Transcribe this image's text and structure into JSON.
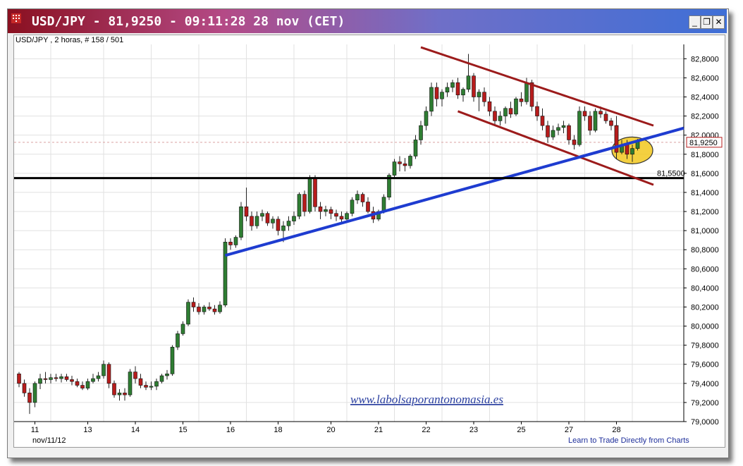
{
  "window": {
    "title": "USD/JPY - 81,9250 - 09:11:28  28 nov (CET)",
    "buttons": {
      "minimize": "_",
      "restore": "❐",
      "close": "✕"
    }
  },
  "subtitle": "USD/JPY , 2 horas, # 158 / 501",
  "footer": {
    "date_label": "nov/11/12",
    "link": "Learn to Trade Directly from Charts"
  },
  "watermark": "www.labolsaporantonomasia.es",
  "colors": {
    "up_candle": "#2e7d32",
    "down_candle": "#b71c1c",
    "channel": "#9c1b1b",
    "trendline": "#1e3cd0",
    "support": "#000000",
    "highlight": "#f2c81e"
  },
  "chart_data": {
    "type": "candlestick",
    "title": "USD/JPY",
    "timeframe": "2 horas",
    "last_price": "81,9250",
    "last_price_value": 81.925,
    "support_level_label": "81,5500",
    "support_level": 81.55,
    "ylim": [
      79.0,
      82.95
    ],
    "y_ticks": [
      79.0,
      79.2,
      79.4,
      79.6,
      79.8,
      80.0,
      80.2,
      80.4,
      80.6,
      80.8,
      81.0,
      81.2,
      81.4,
      81.6,
      81.8,
      82.0,
      82.2,
      82.4,
      82.6,
      82.8
    ],
    "y_tick_labels": [
      "79,0000",
      "79,2000",
      "79,4000",
      "79,6000",
      "79,8000",
      "80,0000",
      "80,2000",
      "80,4000",
      "80,6000",
      "80,8000",
      "81,0000",
      "81,2000",
      "81,4000",
      "81,6000",
      "81,8000",
      "82,0000",
      "82,2000",
      "82,4000",
      "82,6000",
      "82,8000"
    ],
    "x_labels": [
      "11",
      "13",
      "14",
      "15",
      "16",
      "18",
      "20",
      "21",
      "22",
      "23",
      "25",
      "27",
      "28"
    ],
    "x_label_bars": [
      3,
      13,
      22,
      31,
      40,
      49,
      59,
      68,
      77,
      86,
      95,
      104,
      113
    ],
    "x_grid_bars": [
      6,
      16,
      25,
      34,
      43,
      52,
      62,
      71,
      80,
      89,
      98,
      107,
      116
    ],
    "bar_count": 119,
    "candles": [
      [
        79.5,
        79.52,
        79.36,
        79.4
      ],
      [
        79.4,
        79.44,
        79.26,
        79.3
      ],
      [
        79.3,
        79.35,
        79.08,
        79.2
      ],
      [
        79.2,
        79.42,
        79.15,
        79.4
      ],
      [
        79.4,
        79.5,
        79.34,
        79.45
      ],
      [
        79.45,
        79.52,
        79.4,
        79.44
      ],
      [
        79.44,
        79.5,
        79.4,
        79.46
      ],
      [
        79.46,
        79.5,
        79.42,
        79.45
      ],
      [
        79.45,
        79.5,
        79.41,
        79.47
      ],
      [
        79.47,
        79.5,
        79.42,
        79.44
      ],
      [
        79.44,
        79.48,
        79.38,
        79.42
      ],
      [
        79.42,
        79.45,
        79.36,
        79.38
      ],
      [
        79.38,
        79.42,
        79.33,
        79.35
      ],
      [
        79.35,
        79.45,
        79.33,
        79.42
      ],
      [
        79.42,
        79.5,
        79.4,
        79.45
      ],
      [
        79.45,
        79.52,
        79.42,
        79.48
      ],
      [
        79.48,
        79.64,
        79.45,
        79.6
      ],
      [
        79.6,
        79.62,
        79.35,
        79.4
      ],
      [
        79.4,
        79.43,
        79.25,
        79.28
      ],
      [
        79.28,
        79.34,
        79.22,
        79.3
      ],
      [
        79.3,
        79.35,
        79.22,
        79.28
      ],
      [
        79.28,
        79.55,
        79.26,
        79.52
      ],
      [
        79.52,
        79.58,
        79.4,
        79.45
      ],
      [
        79.45,
        79.5,
        79.35,
        79.38
      ],
      [
        79.38,
        79.42,
        79.33,
        79.36
      ],
      [
        79.36,
        79.42,
        79.33,
        79.37
      ],
      [
        79.37,
        79.45,
        79.33,
        79.42
      ],
      [
        79.42,
        79.5,
        79.4,
        79.48
      ],
      [
        79.48,
        79.54,
        79.44,
        79.5
      ],
      [
        79.5,
        79.8,
        79.48,
        79.78
      ],
      [
        79.78,
        79.95,
        79.75,
        79.92
      ],
      [
        79.92,
        80.05,
        79.9,
        80.02
      ],
      [
        80.02,
        80.28,
        80.0,
        80.25
      ],
      [
        80.25,
        80.3,
        80.15,
        80.2
      ],
      [
        80.2,
        80.24,
        80.12,
        80.15
      ],
      [
        80.15,
        80.22,
        80.12,
        80.2
      ],
      [
        80.2,
        80.25,
        80.16,
        80.18
      ],
      [
        80.18,
        80.22,
        80.12,
        80.15
      ],
      [
        80.15,
        80.26,
        80.13,
        80.22
      ],
      [
        80.22,
        80.92,
        80.2,
        80.88
      ],
      [
        80.88,
        80.92,
        80.8,
        80.85
      ],
      [
        80.85,
        80.95,
        80.82,
        80.93
      ],
      [
        80.93,
        81.3,
        80.9,
        81.25
      ],
      [
        81.25,
        81.45,
        81.1,
        81.15
      ],
      [
        81.15,
        81.2,
        81.0,
        81.05
      ],
      [
        81.05,
        81.2,
        81.02,
        81.15
      ],
      [
        81.15,
        81.22,
        81.1,
        81.18
      ],
      [
        81.18,
        81.2,
        81.05,
        81.08
      ],
      [
        81.08,
        81.15,
        81.02,
        81.12
      ],
      [
        81.12,
        81.15,
        80.95,
        81.0
      ],
      [
        81.0,
        81.1,
        80.88,
        81.05
      ],
      [
        81.05,
        81.15,
        81.0,
        81.1
      ],
      [
        81.1,
        81.2,
        81.06,
        81.15
      ],
      [
        81.15,
        81.4,
        81.12,
        81.38
      ],
      [
        81.38,
        81.42,
        81.15,
        81.2
      ],
      [
        81.2,
        81.58,
        81.18,
        81.55
      ],
      [
        81.55,
        81.58,
        81.2,
        81.25
      ],
      [
        81.25,
        81.3,
        81.12,
        81.2
      ],
      [
        81.2,
        81.26,
        81.15,
        81.22
      ],
      [
        81.22,
        81.25,
        81.12,
        81.18
      ],
      [
        81.18,
        81.22,
        81.1,
        81.15
      ],
      [
        81.15,
        81.2,
        81.08,
        81.12
      ],
      [
        81.12,
        81.2,
        81.1,
        81.18
      ],
      [
        81.18,
        81.35,
        81.15,
        81.32
      ],
      [
        81.32,
        81.42,
        81.28,
        81.38
      ],
      [
        81.38,
        81.4,
        81.25,
        81.3
      ],
      [
        81.3,
        81.35,
        81.18,
        81.2
      ],
      [
        81.2,
        81.25,
        81.08,
        81.12
      ],
      [
        81.12,
        81.22,
        81.1,
        81.2
      ],
      [
        81.2,
        81.38,
        81.18,
        81.35
      ],
      [
        81.35,
        81.6,
        81.32,
        81.58
      ],
      [
        81.58,
        81.75,
        81.55,
        81.72
      ],
      [
        81.72,
        81.78,
        81.62,
        81.7
      ],
      [
        81.7,
        81.76,
        81.62,
        81.68
      ],
      [
        81.68,
        81.8,
        81.65,
        81.78
      ],
      [
        81.78,
        82.0,
        81.75,
        81.95
      ],
      [
        81.95,
        82.15,
        81.9,
        82.1
      ],
      [
        82.1,
        82.3,
        82.05,
        82.25
      ],
      [
        82.25,
        82.55,
        82.2,
        82.5
      ],
      [
        82.5,
        82.55,
        82.3,
        82.38
      ],
      [
        82.38,
        82.48,
        82.3,
        82.45
      ],
      [
        82.45,
        82.55,
        82.4,
        82.5
      ],
      [
        82.5,
        82.58,
        82.45,
        82.55
      ],
      [
        82.55,
        82.6,
        82.38,
        82.42
      ],
      [
        82.42,
        82.5,
        82.35,
        82.48
      ],
      [
        82.48,
        82.85,
        82.45,
        82.62
      ],
      [
        82.62,
        82.65,
        82.35,
        82.4
      ],
      [
        82.4,
        82.48,
        82.25,
        82.45
      ],
      [
        82.45,
        82.5,
        82.3,
        82.35
      ],
      [
        82.35,
        82.4,
        82.2,
        82.25
      ],
      [
        82.25,
        82.3,
        82.1,
        82.15
      ],
      [
        82.15,
        82.25,
        82.1,
        82.2
      ],
      [
        82.2,
        82.3,
        82.12,
        82.28
      ],
      [
        82.28,
        82.35,
        82.18,
        82.22
      ],
      [
        82.22,
        82.4,
        82.2,
        82.38
      ],
      [
        82.38,
        82.45,
        82.3,
        82.35
      ],
      [
        82.35,
        82.6,
        82.32,
        82.55
      ],
      [
        82.55,
        82.58,
        82.25,
        82.3
      ],
      [
        82.3,
        82.35,
        82.15,
        82.2
      ],
      [
        82.2,
        82.28,
        82.05,
        82.1
      ],
      [
        82.1,
        82.15,
        81.92,
        81.98
      ],
      [
        81.98,
        82.1,
        81.95,
        82.05
      ],
      [
        82.05,
        82.12,
        82.0,
        82.08
      ],
      [
        82.08,
        82.15,
        82.02,
        82.1
      ],
      [
        82.1,
        82.12,
        81.9,
        81.95
      ],
      [
        81.95,
        82.0,
        81.85,
        81.9
      ],
      [
        81.9,
        82.3,
        81.88,
        82.25
      ],
      [
        82.25,
        82.3,
        82.15,
        82.2
      ],
      [
        82.2,
        82.25,
        82.0,
        82.05
      ],
      [
        82.05,
        82.28,
        82.03,
        82.25
      ],
      [
        82.25,
        82.3,
        82.18,
        82.22
      ],
      [
        82.22,
        82.25,
        82.12,
        82.15
      ],
      [
        82.15,
        82.18,
        82.05,
        82.1
      ],
      [
        82.1,
        82.2,
        81.75,
        81.82
      ],
      [
        81.82,
        81.95,
        81.8,
        81.9
      ],
      [
        81.9,
        81.95,
        81.75,
        81.8
      ],
      [
        81.8,
        81.9,
        81.72,
        81.86
      ],
      [
        81.86,
        81.96,
        81.84,
        81.93
      ]
    ],
    "lines": [
      {
        "name": "",
        "bars": [
          39,
          119
        ],
        "values": [
          80.74,
          81.97
        ],
        "role": "trendline"
      },
      {
        "name": "",
        "bars": [
          -1,
          119
        ],
        "values": [
          81.55,
          81.55
        ],
        "role": "support"
      },
      {
        "name": "",
        "bars": [
          76,
          120
        ],
        "values": [
          82.92,
          82.1
        ],
        "role": "channel-upper"
      },
      {
        "name": "",
        "bars": [
          83,
          120
        ],
        "values": [
          82.25,
          81.48
        ],
        "role": "channel-lower"
      }
    ],
    "highlight": {
      "bar": 116,
      "value": 81.84
    }
  }
}
